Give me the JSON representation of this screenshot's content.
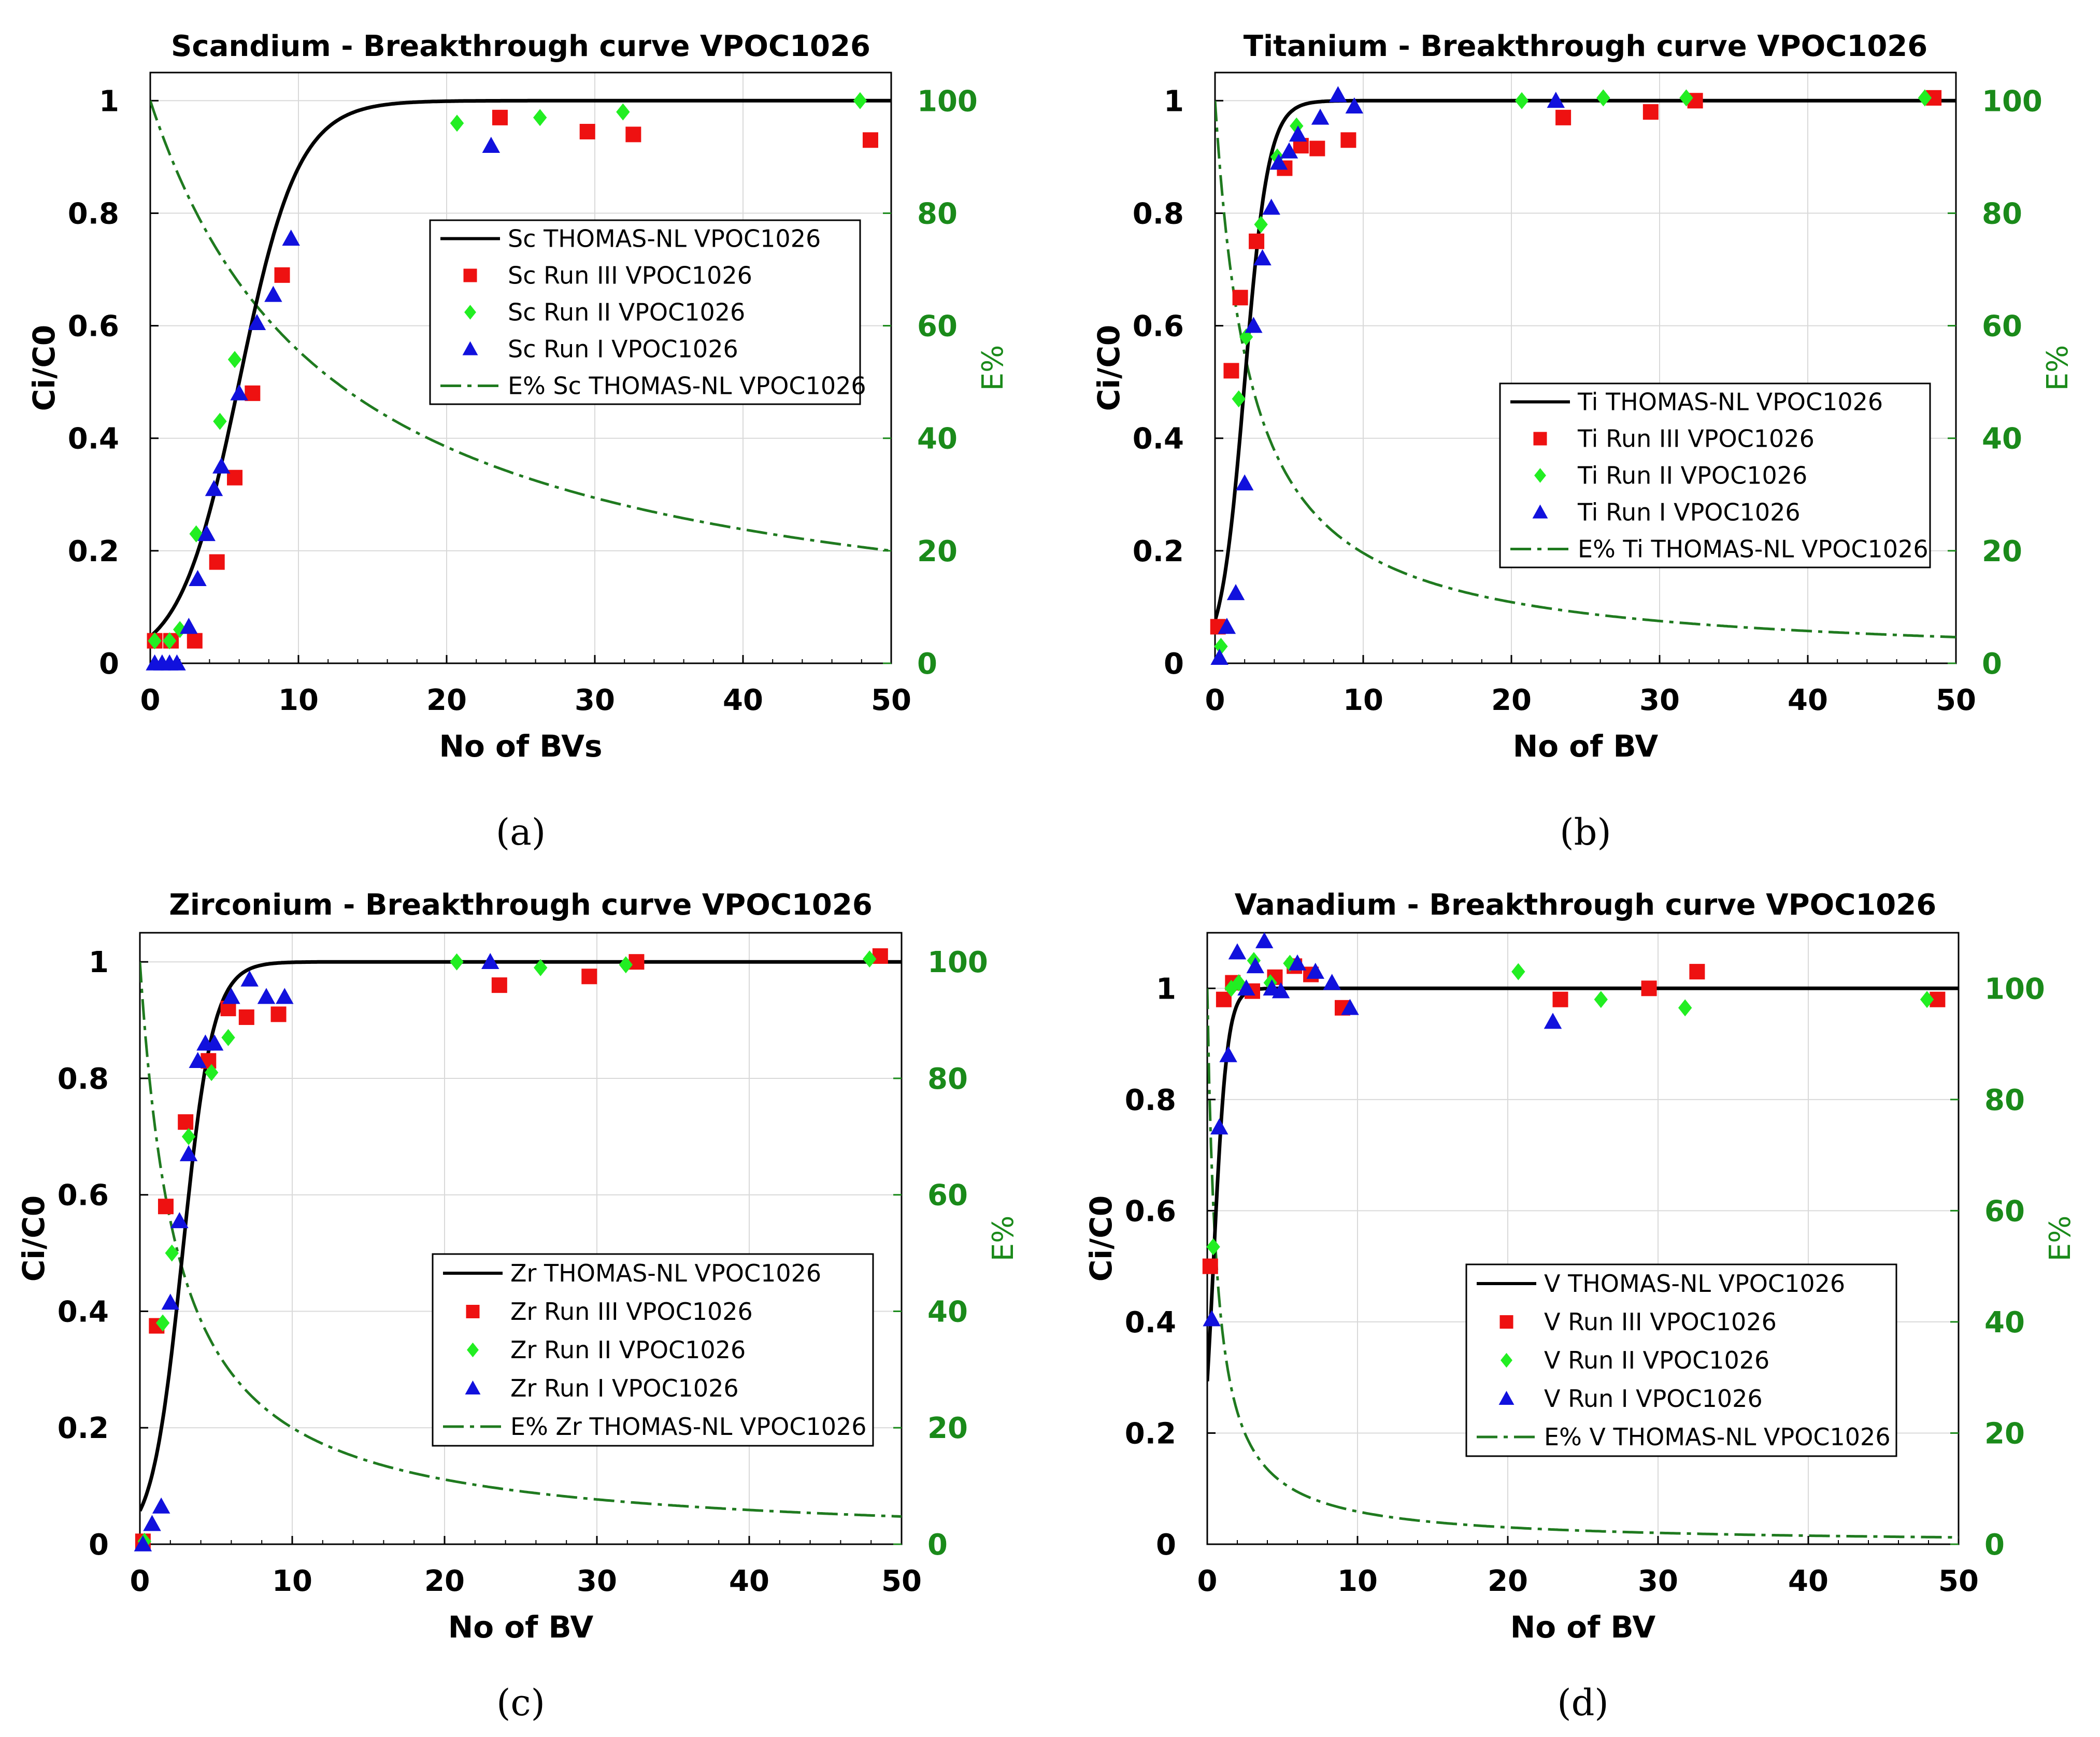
{
  "colors": {
    "thomas": "#000000",
    "run3": "#ee1111",
    "run2": "#22ee22",
    "run1": "#1111dd",
    "ecurve": "#1f7a1f",
    "right_axis": "#1a8a1a"
  },
  "chart_data": [
    {
      "type": "scatter",
      "panel_label": "(a)",
      "title": "Scandium - Breakthrough curve VPOC1026",
      "xlabel": "No of BVs",
      "ylabel": "Ci/C0",
      "y2label": "E%",
      "xlim": [
        0,
        50
      ],
      "ylim": [
        0,
        1.05
      ],
      "y2lim": [
        0,
        105
      ],
      "xticks": [
        0,
        10,
        20,
        30,
        40,
        50
      ],
      "yticks": [
        0,
        0.2,
        0.4,
        0.6,
        0.8,
        1
      ],
      "ytick_labels": [
        "0",
        "0.2",
        "0.4",
        "0.6",
        "0.8",
        "1"
      ],
      "y2ticks": [
        0,
        20,
        40,
        60,
        80,
        100
      ],
      "grid": true,
      "legend_position": "center-right",
      "thomas": {
        "x0": 6.0,
        "k": 0.5
      },
      "ecurve": {
        "a": 0.08
      },
      "series": [
        {
          "name": "Sc THOMAS-NL VPOC1026",
          "kind": "line"
        },
        {
          "name": "Sc Run III VPOC1026",
          "kind": "square",
          "x": [
            0.3,
            1.4,
            3.0,
            4.5,
            5.7,
            6.9,
            8.9,
            23.6,
            29.5,
            32.6,
            48.6
          ],
          "y": [
            0.04,
            0.04,
            0.04,
            0.18,
            0.33,
            0.48,
            0.69,
            0.97,
            0.945,
            0.94,
            0.93
          ]
        },
        {
          "name": "Sc Run II VPOC1026",
          "kind": "diamond",
          "x": [
            0.3,
            1.3,
            2.0,
            3.1,
            4.7,
            5.7,
            20.7,
            26.3,
            31.9,
            47.9
          ],
          "y": [
            0.04,
            0.04,
            0.06,
            0.23,
            0.43,
            0.54,
            0.96,
            0.97,
            0.98,
            1.0
          ]
        },
        {
          "name": "Sc Run I VPOC1026",
          "kind": "triangle",
          "x": [
            0.3,
            0.8,
            1.3,
            1.8,
            2.6,
            3.2,
            3.8,
            4.3,
            4.8,
            6.0,
            7.2,
            8.3,
            9.5,
            23.0
          ],
          "y": [
            0.0,
            0.0,
            0.0,
            0.0,
            0.065,
            0.15,
            0.23,
            0.31,
            0.35,
            0.48,
            0.605,
            0.655,
            0.755,
            0.92
          ]
        },
        {
          "name": "E% Sc THOMAS-NL VPOC1026",
          "kind": "dashdot"
        }
      ]
    },
    {
      "type": "scatter",
      "panel_label": "(b)",
      "title": "Titanium - Breakthrough curve VPOC1026",
      "xlabel": "No of BV",
      "ylabel": "Ci/C0",
      "y2label": "E%",
      "xlim": [
        0,
        50
      ],
      "ylim": [
        0,
        1.05
      ],
      "y2lim": [
        0,
        105
      ],
      "xticks": [
        0,
        10,
        20,
        30,
        40,
        50
      ],
      "yticks": [
        0,
        0.2,
        0.4,
        0.6,
        0.8,
        1
      ],
      "ytick_labels": [
        "0",
        "0.2",
        "0.4",
        "0.6",
        "0.8",
        "1"
      ],
      "y2ticks": [
        0,
        20,
        40,
        60,
        80,
        100
      ],
      "grid": true,
      "legend_position": "center-right",
      "thomas": {
        "x0": 2.0,
        "k": 1.25
      },
      "ecurve": {
        "a": 0.41
      },
      "series": [
        {
          "name": "Ti THOMAS-NL VPOC1026",
          "kind": "line"
        },
        {
          "name": "Ti Run III VPOC1026",
          "kind": "square",
          "x": [
            0.2,
            1.1,
            1.7,
            2.8,
            4.7,
            5.8,
            6.9,
            9.0,
            23.5,
            29.4,
            32.4,
            48.5
          ],
          "y": [
            0.065,
            0.52,
            0.65,
            0.75,
            0.88,
            0.92,
            0.915,
            0.93,
            0.97,
            0.98,
            1.0,
            1.005
          ]
        },
        {
          "name": "Ti Run II VPOC1026",
          "kind": "diamond",
          "x": [
            0.4,
            1.6,
            2.1,
            3.1,
            4.2,
            5.5,
            20.7,
            26.2,
            31.8,
            47.9
          ],
          "y": [
            0.03,
            0.47,
            0.58,
            0.78,
            0.9,
            0.955,
            1.0,
            1.005,
            1.005,
            1.005
          ]
        },
        {
          "name": "Ti Run I VPOC1026",
          "kind": "triangle",
          "x": [
            0.3,
            0.8,
            1.4,
            2.0,
            2.6,
            3.2,
            3.8,
            4.3,
            5.0,
            5.6,
            7.1,
            8.3,
            9.4,
            23.0
          ],
          "y": [
            0.01,
            0.065,
            0.125,
            0.32,
            0.6,
            0.72,
            0.81,
            0.89,
            0.91,
            0.94,
            0.97,
            1.01,
            0.99,
            1.0
          ]
        },
        {
          "name": "E% Ti THOMAS-NL VPOC1026",
          "kind": "dashdot"
        }
      ]
    },
    {
      "type": "scatter",
      "panel_label": "(c)",
      "title": "Zirconium - Breakthrough curve VPOC1026",
      "xlabel": "No of BV",
      "ylabel": "Ci/C0",
      "y2label": "E%",
      "xlim": [
        0,
        50
      ],
      "ylim": [
        0,
        1.05
      ],
      "y2lim": [
        0,
        105
      ],
      "xticks": [
        0,
        10,
        20,
        30,
        40,
        50
      ],
      "yticks": [
        0,
        0.2,
        0.4,
        0.6,
        0.8,
        1
      ],
      "ytick_labels": [
        "0",
        "0.2",
        "0.4",
        "0.6",
        "0.8",
        "1"
      ],
      "y2ticks": [
        0,
        20,
        40,
        60,
        80,
        100
      ],
      "grid": true,
      "legend_position": "center-right",
      "thomas": {
        "x0": 2.8,
        "k": 1.0
      },
      "ecurve": {
        "a": 0.4
      },
      "series": [
        {
          "name": "Zr THOMAS-NL VPOC1026",
          "kind": "line"
        },
        {
          "name": "Zr Run III VPOC1026",
          "kind": "square",
          "x": [
            0.2,
            1.1,
            1.7,
            3.0,
            4.5,
            5.8,
            7.0,
            9.1,
            23.6,
            29.5,
            32.6,
            48.6
          ],
          "y": [
            0.005,
            0.375,
            0.58,
            0.725,
            0.83,
            0.92,
            0.905,
            0.91,
            0.96,
            0.975,
            1.0,
            1.01
          ]
        },
        {
          "name": "Zr Run II VPOC1026",
          "kind": "diamond",
          "x": [
            0.3,
            1.5,
            2.1,
            3.2,
            4.7,
            5.8,
            20.8,
            26.3,
            31.9,
            47.9
          ],
          "y": [
            0.005,
            0.38,
            0.5,
            0.7,
            0.81,
            0.87,
            1.0,
            0.99,
            0.995,
            1.005
          ]
        },
        {
          "name": "Zr Run I VPOC1026",
          "kind": "triangle",
          "x": [
            0.2,
            0.8,
            1.4,
            2.0,
            2.6,
            3.2,
            3.8,
            4.3,
            4.9,
            6.0,
            7.2,
            8.3,
            9.5,
            23.0
          ],
          "y": [
            0.0,
            0.035,
            0.065,
            0.415,
            0.555,
            0.67,
            0.83,
            0.86,
            0.86,
            0.94,
            0.97,
            0.94,
            0.94,
            1.0
          ]
        },
        {
          "name": "E% Zr THOMAS-NL VPOC1026",
          "kind": "dashdot"
        }
      ]
    },
    {
      "type": "scatter",
      "panel_label": "(d)",
      "title": "Vanadium - Breakthrough curve VPOC1026",
      "xlabel": "No of BV",
      "ylabel": "Ci/C0",
      "y2label": "E%",
      "xlim": [
        0,
        50
      ],
      "ylim": [
        0,
        1.1
      ],
      "y2lim": [
        0,
        110
      ],
      "xticks": [
        0,
        10,
        20,
        30,
        40,
        50
      ],
      "yticks": [
        0,
        0.2,
        0.4,
        0.6,
        0.8,
        1
      ],
      "ytick_labels": [
        "0",
        "0.2",
        "0.4",
        "0.6",
        "0.8",
        "1"
      ],
      "y2ticks": [
        0,
        20,
        40,
        60,
        80,
        100
      ],
      "grid": true,
      "legend_position": "center-right",
      "thomas": {
        "x0": 0.4,
        "k": 2.2
      },
      "ecurve": {
        "a": 1.6
      },
      "series": [
        {
          "name": "V THOMAS-NL VPOC1026",
          "kind": "line"
        },
        {
          "name": "V Run III VPOC1026",
          "kind": "square",
          "x": [
            0.2,
            1.1,
            1.7,
            3.0,
            4.5,
            5.8,
            6.9,
            9.0,
            23.5,
            29.4,
            32.6,
            48.6
          ],
          "y": [
            0.5,
            0.98,
            1.01,
            0.995,
            1.02,
            1.04,
            1.025,
            0.965,
            0.98,
            1.0,
            1.03,
            0.98
          ]
        },
        {
          "name": "V Run II VPOC1026",
          "kind": "diamond",
          "x": [
            0.4,
            1.6,
            2.1,
            3.1,
            4.2,
            5.5,
            20.7,
            26.2,
            31.8,
            47.9
          ],
          "y": [
            0.535,
            1.0,
            1.01,
            1.05,
            1.01,
            1.045,
            1.03,
            0.98,
            0.965,
            0.98
          ]
        },
        {
          "name": "V Run I VPOC1026",
          "kind": "triangle",
          "x": [
            0.3,
            0.8,
            1.4,
            2.0,
            2.6,
            3.2,
            3.8,
            4.3,
            4.9,
            6.0,
            7.2,
            8.3,
            9.5,
            23.0
          ],
          "y": [
            0.405,
            0.75,
            0.88,
            1.065,
            1.0,
            1.04,
            1.085,
            1.0,
            0.995,
            1.045,
            1.03,
            1.01,
            0.965,
            0.94
          ]
        },
        {
          "name": "E% V THOMAS-NL VPOC1026",
          "kind": "dashdot"
        }
      ]
    }
  ]
}
